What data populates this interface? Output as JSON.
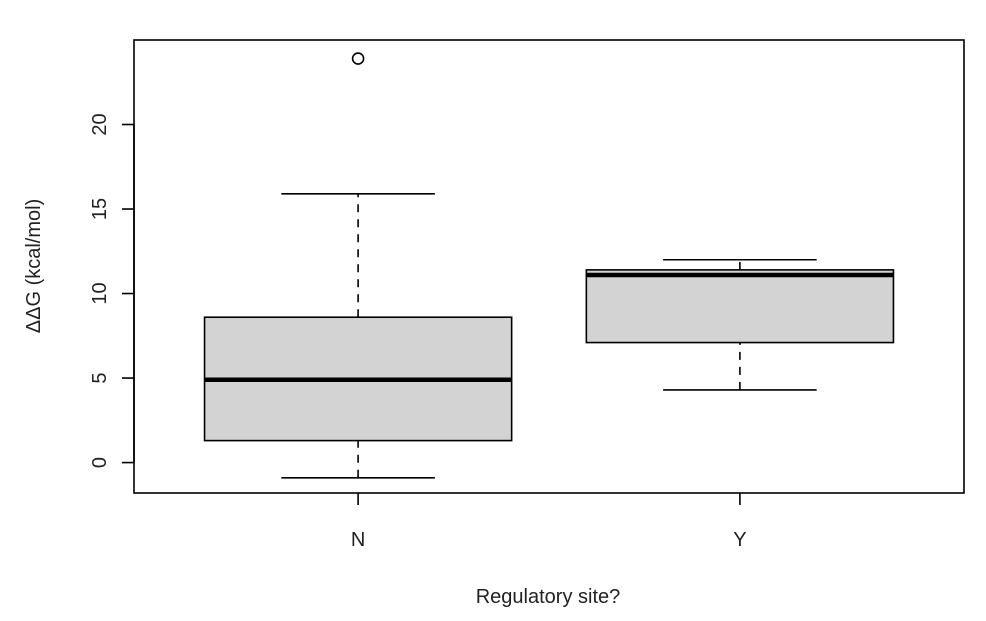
{
  "chart_data": {
    "type": "boxplot",
    "title": "",
    "xlabel": "Regulatory site?",
    "ylabel": "ΔΔG (kcal/mol)",
    "ylim": [
      -1.8,
      25.0
    ],
    "yticks": [
      0,
      5,
      10,
      15,
      20
    ],
    "grid": false,
    "legend": "none",
    "categories": [
      "N",
      "Y"
    ],
    "boxes": [
      {
        "category": "N",
        "whisker_low": -0.9,
        "q1": 1.3,
        "median": 4.9,
        "q3": 8.6,
        "whisker_high": 15.9,
        "outliers": [
          23.9
        ]
      },
      {
        "category": "Y",
        "whisker_low": 4.3,
        "q1": 7.1,
        "median": 11.1,
        "q3": 11.4,
        "whisker_high": 12.0,
        "outliers": []
      }
    ],
    "colors": {
      "box_fill": "#d3d3d3",
      "stroke": "#000000"
    }
  }
}
